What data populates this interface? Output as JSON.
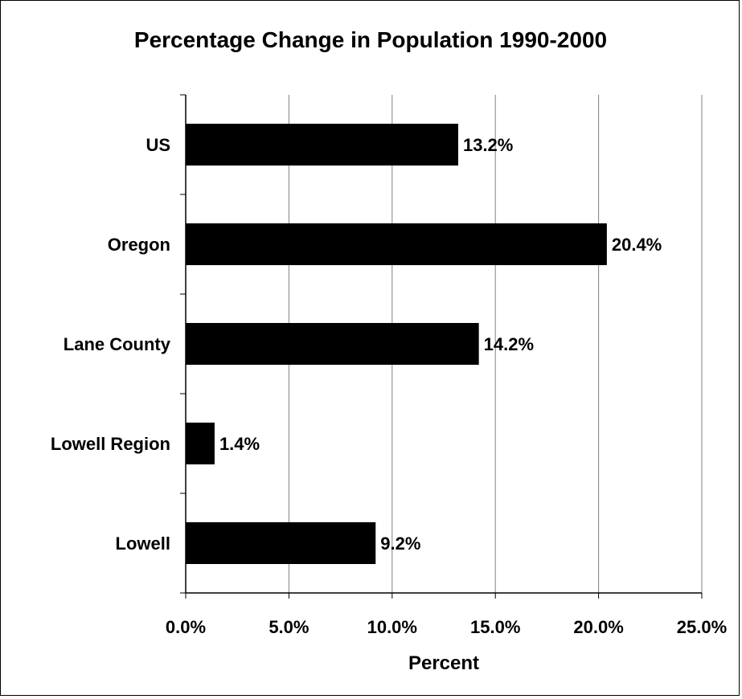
{
  "chart_data": {
    "type": "bar",
    "orientation": "horizontal",
    "title": "Percentage Change in Population 1990-2000",
    "xlabel": "Percent",
    "ylabel": "",
    "categories": [
      "US",
      "Oregon",
      "Lane County",
      "Lowell Region",
      "Lowell"
    ],
    "values": [
      13.2,
      20.4,
      14.2,
      1.4,
      9.2
    ],
    "data_labels": [
      "13.2%",
      "20.4%",
      "14.2%",
      "1.4%",
      "9.2%"
    ],
    "xlim": [
      0,
      25
    ],
    "x_ticks": [
      0,
      5,
      10,
      15,
      20,
      25
    ],
    "x_tick_labels": [
      "0.0%",
      "5.0%",
      "10.0%",
      "15.0%",
      "20.0%",
      "25.0%"
    ],
    "grid": "vertical",
    "legend": "none",
    "bar_color": "#000000",
    "grid_color": "#808080"
  }
}
